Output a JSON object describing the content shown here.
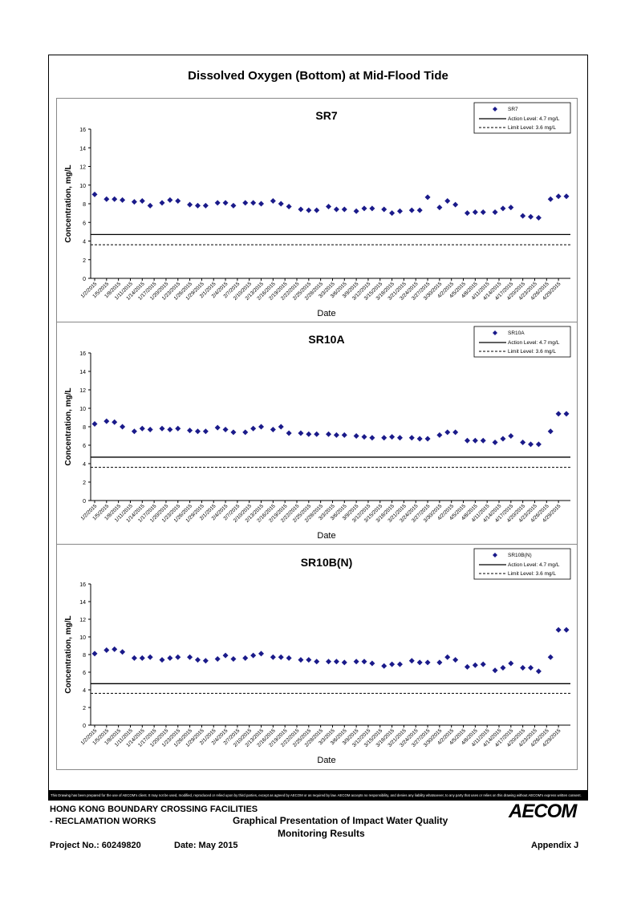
{
  "title": "Dissolved Oxygen (Bottom) at Mid-Flood Tide",
  "chart_data": [
    {
      "type": "scatter",
      "title": "SR7",
      "xlabel": "Date",
      "ylabel": "Concentration, mg/L",
      "ylim": [
        0,
        16
      ],
      "yticks": [
        0,
        2,
        4,
        6,
        8,
        10,
        12,
        14,
        16
      ],
      "xticks": [
        "1/2/2015",
        "1/5/2015",
        "1/8/2015",
        "1/11/2015",
        "1/14/2015",
        "1/17/2015",
        "1/20/2015",
        "1/23/2015",
        "1/26/2015",
        "1/29/2015",
        "2/1/2015",
        "2/4/2015",
        "2/7/2015",
        "2/10/2015",
        "2/13/2015",
        "2/16/2015",
        "2/19/2015",
        "2/22/2015",
        "2/25/2015",
        "2/28/2015",
        "3/3/2015",
        "3/6/2015",
        "3/9/2015",
        "3/12/2015",
        "3/15/2015",
        "3/18/2015",
        "3/21/2015",
        "3/24/2015",
        "3/27/2015",
        "3/30/2015",
        "4/2/2015",
        "4/5/2015",
        "4/8/2015",
        "4/11/2015",
        "4/14/2015",
        "4/17/2015",
        "4/20/2015",
        "4/23/2015",
        "4/26/2015",
        "4/29/2015"
      ],
      "legend": [
        "SR7",
        "Action Level: 4.7 mg/L",
        "Limit Level: 3.6 mg/L"
      ],
      "legend_position": "top-right",
      "action_level": 4.7,
      "limit_level": 3.6,
      "series": [
        {
          "name": "SR7",
          "x": [
            0,
            3,
            5,
            7,
            10,
            12,
            14,
            17,
            19,
            21,
            24,
            26,
            28,
            31,
            33,
            35,
            38,
            40,
            42,
            45,
            47,
            49,
            52,
            54,
            56,
            59,
            61,
            63,
            66,
            68,
            70,
            73,
            75,
            77,
            80,
            82,
            84,
            87,
            89,
            91,
            94,
            96,
            98,
            101,
            103,
            105,
            108,
            110,
            112,
            115,
            117,
            119
          ],
          "y": [
            9.0,
            8.5,
            8.5,
            8.4,
            8.2,
            8.3,
            7.8,
            8.1,
            8.4,
            8.3,
            7.9,
            7.8,
            7.8,
            8.1,
            8.1,
            7.8,
            8.1,
            8.1,
            8.0,
            8.3,
            8.0,
            7.7,
            7.4,
            7.3,
            7.3,
            7.7,
            7.4,
            7.4,
            7.2,
            7.5,
            7.5,
            7.4,
            7.0,
            7.2,
            7.3,
            7.3,
            8.7,
            7.6,
            8.3,
            7.9,
            7.0,
            7.1,
            7.1,
            7.1,
            7.5,
            7.6,
            6.7,
            6.6,
            6.5,
            8.5,
            8.8,
            8.8
          ]
        }
      ]
    },
    {
      "type": "scatter",
      "title": "SR10A",
      "xlabel": "Date",
      "ylabel": "Concentration, mg/L",
      "ylim": [
        0,
        16
      ],
      "yticks": [
        0,
        2,
        4,
        6,
        8,
        10,
        12,
        14,
        16
      ],
      "xticks": [
        "1/2/2015",
        "1/5/2015",
        "1/8/2015",
        "1/11/2015",
        "1/14/2015",
        "1/17/2015",
        "1/20/2015",
        "1/23/2015",
        "1/26/2015",
        "1/29/2015",
        "2/1/2015",
        "2/4/2015",
        "2/7/2015",
        "2/10/2015",
        "2/13/2015",
        "2/16/2015",
        "2/19/2015",
        "2/22/2015",
        "2/25/2015",
        "2/28/2015",
        "3/3/2015",
        "3/6/2015",
        "3/9/2015",
        "3/12/2015",
        "3/15/2015",
        "3/18/2015",
        "3/21/2015",
        "3/24/2015",
        "3/27/2015",
        "3/30/2015",
        "4/2/2015",
        "4/5/2015",
        "4/8/2015",
        "4/11/2015",
        "4/14/2015",
        "4/17/2015",
        "4/20/2015",
        "4/23/2015",
        "4/26/2015",
        "4/29/2015"
      ],
      "legend": [
        "SR10A",
        "Action Level: 4.7 mg/L",
        "Limit Level: 3.6 mg/L"
      ],
      "legend_position": "top-right",
      "action_level": 4.7,
      "limit_level": 3.6,
      "series": [
        {
          "name": "SR10A",
          "x": [
            0,
            3,
            5,
            7,
            10,
            12,
            14,
            17,
            19,
            21,
            24,
            26,
            28,
            31,
            33,
            35,
            38,
            40,
            42,
            45,
            47,
            49,
            52,
            54,
            56,
            59,
            61,
            63,
            66,
            68,
            70,
            73,
            75,
            77,
            80,
            82,
            84,
            87,
            89,
            91,
            94,
            96,
            98,
            101,
            103,
            105,
            108,
            110,
            112,
            115,
            117,
            119
          ],
          "y": [
            8.3,
            8.6,
            8.5,
            8.0,
            7.5,
            7.8,
            7.7,
            7.8,
            7.7,
            7.8,
            7.6,
            7.5,
            7.5,
            7.9,
            7.7,
            7.4,
            7.4,
            7.8,
            8.0,
            7.7,
            8.0,
            7.3,
            7.3,
            7.2,
            7.2,
            7.2,
            7.1,
            7.1,
            7.0,
            6.9,
            6.8,
            6.8,
            6.9,
            6.8,
            6.8,
            6.7,
            6.7,
            7.1,
            7.4,
            7.4,
            6.5,
            6.5,
            6.5,
            6.3,
            6.7,
            7.0,
            6.3,
            6.1,
            6.1,
            7.5,
            9.4,
            9.4
          ]
        }
      ]
    },
    {
      "type": "scatter",
      "title": "SR10B(N)",
      "xlabel": "Date",
      "ylabel": "Concentration, mg/L",
      "ylim": [
        0,
        16
      ],
      "yticks": [
        0,
        2,
        4,
        6,
        8,
        10,
        12,
        14,
        16
      ],
      "xticks": [
        "1/2/2015",
        "1/5/2015",
        "1/8/2015",
        "1/11/2015",
        "1/14/2015",
        "1/17/2015",
        "1/20/2015",
        "1/23/2015",
        "1/26/2015",
        "1/29/2015",
        "2/1/2015",
        "2/4/2015",
        "2/7/2015",
        "2/10/2015",
        "2/13/2015",
        "2/16/2015",
        "2/19/2015",
        "2/22/2015",
        "2/25/2015",
        "2/28/2015",
        "3/3/2015",
        "3/6/2015",
        "3/9/2015",
        "3/12/2015",
        "3/15/2015",
        "3/18/2015",
        "3/21/2015",
        "3/24/2015",
        "3/27/2015",
        "3/30/2015",
        "4/2/2015",
        "4/5/2015",
        "4/8/2015",
        "4/11/2015",
        "4/14/2015",
        "4/17/2015",
        "4/20/2015",
        "4/23/2015",
        "4/26/2015",
        "4/29/2015"
      ],
      "legend": [
        "SR10B(N)",
        "Action Level: 4.7 mg/L",
        "Limit Level: 3.6 mg/L"
      ],
      "legend_position": "top-right",
      "action_level": 4.7,
      "limit_level": 3.6,
      "series": [
        {
          "name": "SR10B(N)",
          "x": [
            0,
            3,
            5,
            7,
            10,
            12,
            14,
            17,
            19,
            21,
            24,
            26,
            28,
            31,
            33,
            35,
            38,
            40,
            42,
            45,
            47,
            49,
            52,
            54,
            56,
            59,
            61,
            63,
            66,
            68,
            70,
            73,
            75,
            77,
            80,
            82,
            84,
            87,
            89,
            91,
            94,
            96,
            98,
            101,
            103,
            105,
            108,
            110,
            112,
            115,
            117,
            119
          ],
          "y": [
            8.1,
            8.5,
            8.6,
            8.3,
            7.6,
            7.6,
            7.7,
            7.4,
            7.6,
            7.7,
            7.7,
            7.4,
            7.3,
            7.5,
            7.9,
            7.5,
            7.6,
            7.9,
            8.1,
            7.7,
            7.7,
            7.6,
            7.4,
            7.4,
            7.2,
            7.2,
            7.2,
            7.1,
            7.2,
            7.2,
            7.0,
            6.7,
            6.9,
            6.9,
            7.3,
            7.1,
            7.1,
            7.1,
            7.7,
            7.4,
            6.6,
            6.8,
            6.9,
            6.2,
            6.5,
            7.0,
            6.5,
            6.5,
            6.1,
            7.7,
            10.8,
            10.8
          ]
        }
      ]
    }
  ],
  "disclaimer": "This Drawing has been prepared for the use of AECOM's client. It may not be used, modified, reproduced or relied upon by third parties, except as agreed by AECOM or as required by law. AECOM accepts no responsibility, and denies any liability whatsoever, to any party that uses or relies on this drawing without AECOM's express written consent.",
  "footer": {
    "project_line1": "HONG KONG BOUNDARY CROSSING FACILITIES",
    "project_line2": "- RECLAMATION WORKS",
    "drawing_title_line1": "Graphical Presentation of Impact Water Quality",
    "drawing_title_line2": "Monitoring Results",
    "project_no": "Project No.: 60249820",
    "date": "Date: May 2015",
    "appendix": "Appendix J",
    "logo": "AECOM"
  }
}
